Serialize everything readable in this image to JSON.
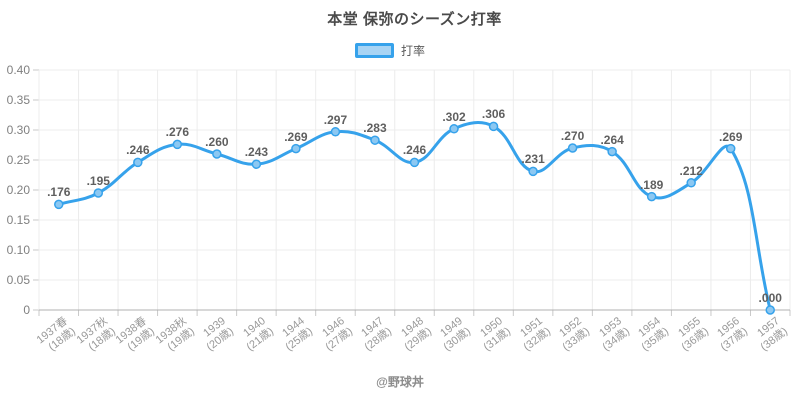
{
  "footer": "@野球丼",
  "colors": {
    "line": "#36a2eb",
    "point_fill": "#8cc8f2",
    "legend_fill": "#a8d4f4",
    "grid": "#ececec",
    "axis": "#b0b0b0",
    "tick": "#c9c9c9"
  },
  "chart_data": {
    "type": "line",
    "title": "本堂 保弥のシーズン打率",
    "legend_position": "top",
    "grid": true,
    "ylim": [
      0,
      0.4
    ],
    "ytick_labels": [
      "0.40",
      "0.35",
      "0.30",
      "0.25",
      "0.20",
      "0.15",
      "0.10",
      "0.05",
      "0"
    ],
    "categories": [
      {
        "year": "1937春",
        "age": "(18歳)"
      },
      {
        "year": "1937秋",
        "age": "(18歳)"
      },
      {
        "year": "1938春",
        "age": "(19歳)"
      },
      {
        "year": "1938秋",
        "age": "(19歳)"
      },
      {
        "year": "1939",
        "age": "(20歳)"
      },
      {
        "year": "1940",
        "age": "(21歳)"
      },
      {
        "year": "1944",
        "age": "(25歳)"
      },
      {
        "year": "1946",
        "age": "(27歳)"
      },
      {
        "year": "1947",
        "age": "(28歳)"
      },
      {
        "year": "1948",
        "age": "(29歳)"
      },
      {
        "year": "1949",
        "age": "(30歳)"
      },
      {
        "year": "1950",
        "age": "(31歳)"
      },
      {
        "year": "1951",
        "age": "(32歳)"
      },
      {
        "year": "1952",
        "age": "(33歳)"
      },
      {
        "year": "1953",
        "age": "(34歳)"
      },
      {
        "year": "1954",
        "age": "(35歳)"
      },
      {
        "year": "1955",
        "age": "(36歳)"
      },
      {
        "year": "1956",
        "age": "(37歳)"
      },
      {
        "year": "1957",
        "age": "(38歳)"
      }
    ],
    "series": [
      {
        "name": "打率",
        "values": [
          0.176,
          0.195,
          0.246,
          0.276,
          0.26,
          0.243,
          0.269,
          0.297,
          0.283,
          0.246,
          0.302,
          0.306,
          0.231,
          0.27,
          0.264,
          0.189,
          0.212,
          0.269,
          0.0
        ]
      }
    ],
    "point_labels": [
      ".176",
      ".195",
      ".246",
      ".276",
      ".260",
      ".243",
      ".269",
      ".297",
      ".283",
      ".246",
      ".302",
      ".306",
      ".231",
      ".270",
      ".264",
      ".189",
      ".212",
      ".269",
      ".000"
    ]
  }
}
